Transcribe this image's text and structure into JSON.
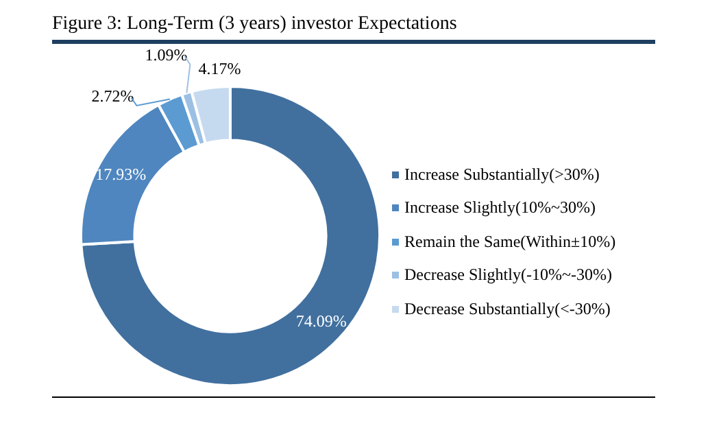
{
  "chart_data": {
    "type": "donut",
    "title": "Figure 3: Long-Term (3 years) investor Expectations",
    "categories": [
      "Increase Substantially(>30%)",
      "Increase Slightly(10%~30%)",
      "Remain the Same(Within±10%)",
      "Decrease Slightly(-10%~-30%)",
      "Decrease Substantially(<-30%)"
    ],
    "values": [
      74.09,
      17.93,
      2.72,
      1.09,
      4.17
    ],
    "value_labels": [
      "74.09%",
      "17.93%",
      "2.72%",
      "1.09%",
      "4.17%"
    ],
    "colors": [
      "#41709f",
      "#4f86bf",
      "#5b9bd2",
      "#9cc0e4",
      "#c6daef"
    ],
    "legend": "right"
  }
}
